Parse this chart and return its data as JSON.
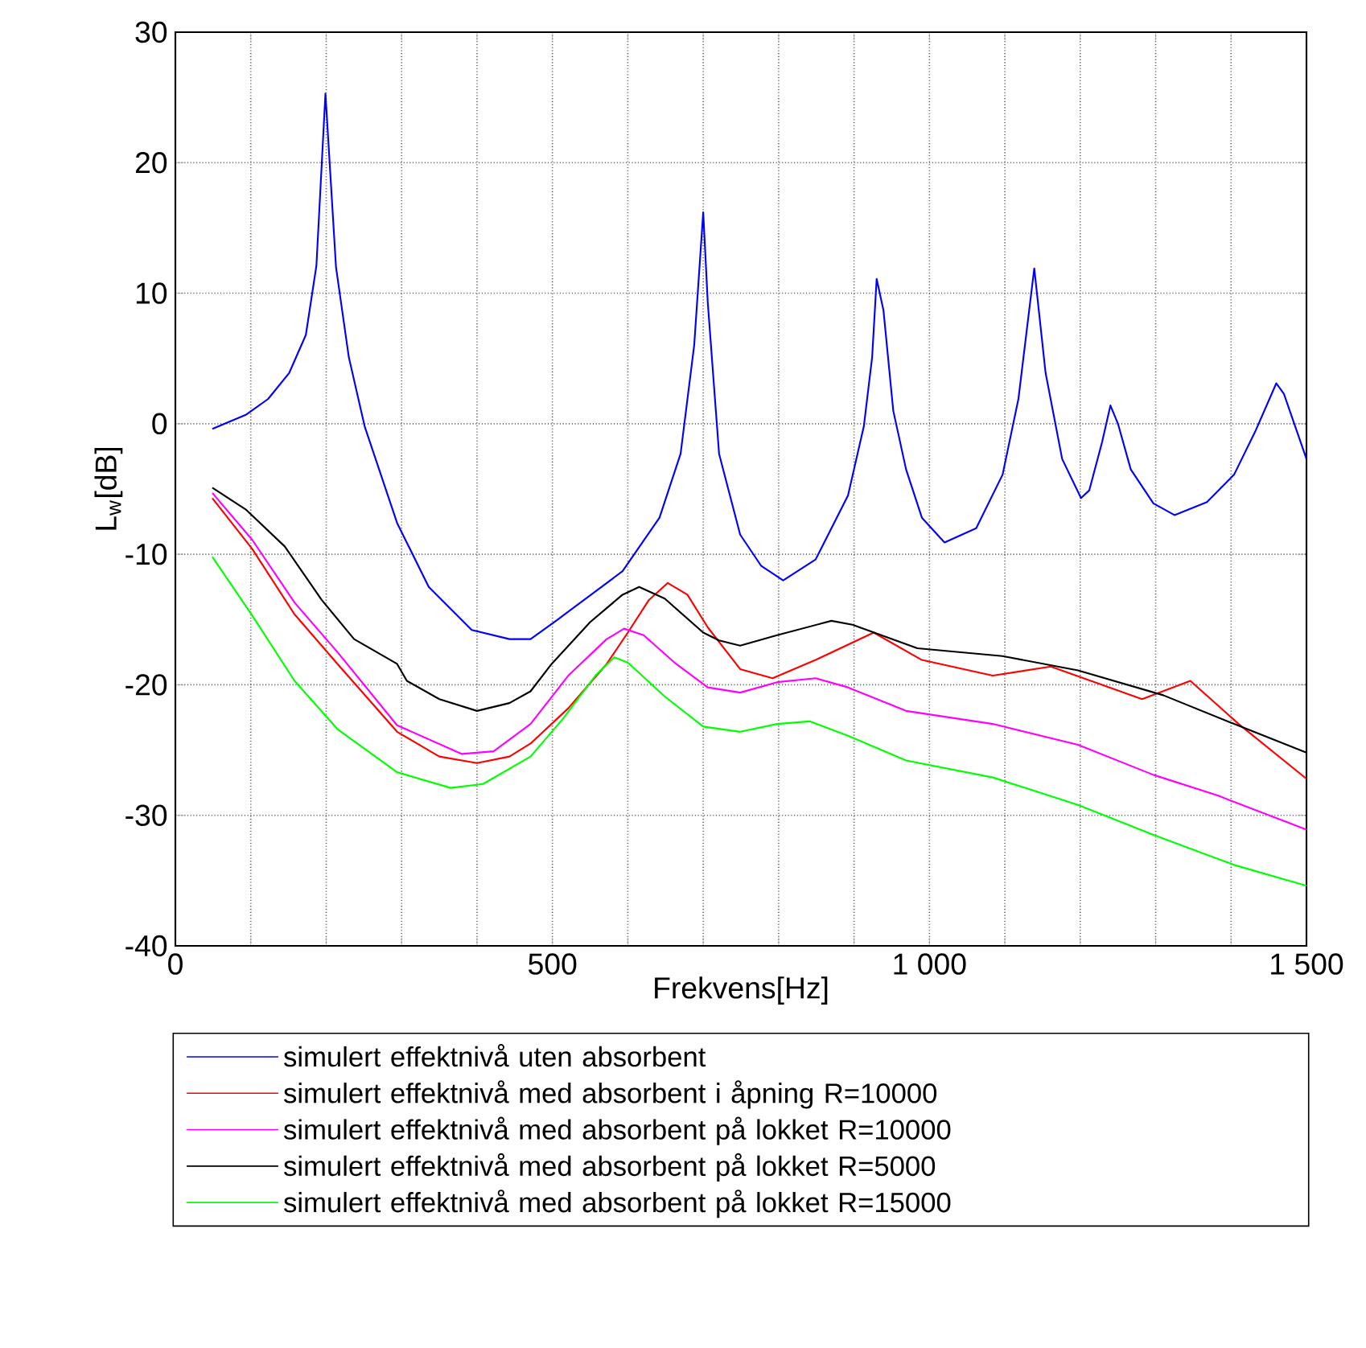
{
  "chart_data": {
    "type": "line",
    "xlabel": "Frekvens[Hz]",
    "ylabel": "L$_{w}$[dB]",
    "xlim": [
      0,
      1500
    ],
    "ylim": [
      -40,
      30
    ],
    "xticks": [
      0,
      {
        "value": 100,
        "label": null
      },
      {
        "value": 200,
        "label": null
      },
      {
        "value": 300,
        "label": null
      },
      {
        "value": 400,
        "label": null
      },
      500,
      {
        "value": 600,
        "label": null
      },
      {
        "value": 700,
        "label": null
      },
      {
        "value": 800,
        "label": null
      },
      {
        "value": 900,
        "label": null
      },
      {
        "value": 1000,
        "label": "1 000"
      },
      {
        "value": 1100,
        "label": null
      },
      {
        "value": 1200,
        "label": null
      },
      {
        "value": 1300,
        "label": null
      },
      {
        "value": 1400,
        "label": null
      },
      {
        "value": 1500,
        "label": "1 500"
      }
    ],
    "yticks": [
      -40,
      -30,
      -20,
      -10,
      0,
      10,
      20,
      30
    ],
    "grid": true,
    "legend": "bottom",
    "line_style": "solid",
    "series": [
      {
        "name": "simulert effektnivå uten absorbent",
        "color": "#0000ff",
        "x": [
          49,
          94,
          123,
          151,
          173,
          187,
          199,
          213,
          230,
          251,
          294,
          336,
          393,
          443,
          471,
          507,
          593,
          642,
          670,
          688,
          700,
          706,
          721,
          749,
          777,
          806,
          849,
          892,
          913,
          924,
          930,
          939,
          952,
          969,
          990,
          1020,
          1062,
          1097,
          1118,
          1139,
          1154,
          1176,
          1201,
          1212,
          1229,
          1240,
          1250,
          1267,
          1297,
          1325,
          1368,
          1404,
          1432,
          1460,
          1470,
          1500
        ],
        "values": [
          -0.4,
          0.7,
          1.9,
          3.9,
          6.8,
          12.1,
          25.3,
          12,
          5.1,
          -0.2,
          -7.6,
          -12.5,
          -15.8,
          -16.5,
          -16.5,
          -15,
          -11.3,
          -7.2,
          -2.3,
          6,
          16.2,
          9.3,
          -2.3,
          -8.5,
          -10.9,
          -12,
          -10.4,
          -5.5,
          -0.2,
          5.1,
          11.1,
          8.7,
          1,
          -3.5,
          -7.2,
          -9.1,
          -8,
          -3.9,
          1.9,
          11.9,
          3.9,
          -2.7,
          -5.7,
          -5.1,
          -1.4,
          1.4,
          0,
          -3.5,
          -6.1,
          -7,
          -6,
          -3.9,
          -0.6,
          3.1,
          2.3,
          -2.7
        ]
      },
      {
        "name": "simulert effektnivå med absorbent i åpning R=10000",
        "color": "#ff0000",
        "x": [
          49,
          102,
          158,
          215,
          294,
          350,
          400,
          443,
          471,
          521,
          572,
          600,
          628,
          653,
          679,
          706,
          749,
          792,
          849,
          926,
          990,
          1084,
          1161,
          1282,
          1346,
          1410,
          1500
        ],
        "values": [
          -5.7,
          -9.6,
          -14.6,
          -18.4,
          -23.6,
          -25.5,
          -26,
          -25.5,
          -24.5,
          -21.8,
          -18.4,
          -16,
          -13.5,
          -12.2,
          -13.1,
          -15.6,
          -18.8,
          -19.5,
          -18.1,
          -16,
          -18.1,
          -19.3,
          -18.6,
          -21.1,
          -19.7,
          -23,
          -27.2
        ]
      },
      {
        "name": "simulert effektnivå med absorbent på lokket R=10000",
        "color": "#ff00ff",
        "x": [
          49,
          102,
          158,
          215,
          294,
          380,
          422,
          471,
          521,
          572,
          595,
          621,
          664,
          706,
          749,
          798,
          849,
          892,
          969,
          1084,
          1197,
          1297,
          1383,
          1500
        ],
        "values": [
          -5.3,
          -8.9,
          -13.7,
          -17.5,
          -23.1,
          -25.3,
          -25.1,
          -23,
          -19.3,
          -16.5,
          -15.7,
          -16.2,
          -18.4,
          -20.2,
          -20.6,
          -19.8,
          -19.5,
          -20.2,
          -22,
          -23,
          -24.6,
          -26.9,
          -28.5,
          -31.1
        ]
      },
      {
        "name": "simulert effektnivå med absorbent på lokket R=5000",
        "color": "#000000",
        "x": [
          49,
          94,
          145,
          194,
          237,
          294,
          307,
          350,
          400,
          443,
          471,
          499,
          550,
          593,
          615,
          649,
          700,
          721,
          749,
          798,
          870,
          898,
          984,
          1097,
          1197,
          1310,
          1404,
          1500
        ],
        "values": [
          -4.9,
          -6.6,
          -9.4,
          -13.5,
          -16.5,
          -18.4,
          -19.7,
          -21.1,
          -22,
          -21.4,
          -20.5,
          -18.4,
          -15.2,
          -13.1,
          -12.5,
          -13.4,
          -16,
          -16.6,
          -17,
          -16.2,
          -15.1,
          -15.4,
          -17.2,
          -17.8,
          -18.9,
          -20.8,
          -23,
          -25.2
        ]
      },
      {
        "name": "simulert effektnivå med absorbent på lokket R=15000",
        "color": "#00ff00",
        "x": [
          49,
          102,
          158,
          215,
          294,
          365,
          408,
          471,
          514,
          557,
          582,
          600,
          649,
          700,
          749,
          798,
          841,
          892,
          969,
          1084,
          1197,
          1297,
          1404,
          1500
        ],
        "values": [
          -10.2,
          -14.7,
          -19.7,
          -23.4,
          -26.7,
          -27.9,
          -27.6,
          -25.5,
          -22.6,
          -19.3,
          -17.9,
          -18.3,
          -20.9,
          -23.2,
          -23.6,
          -23,
          -22.8,
          -23.9,
          -25.8,
          -27.1,
          -29.2,
          -31.5,
          -33.8,
          -35.4
        ]
      }
    ]
  }
}
